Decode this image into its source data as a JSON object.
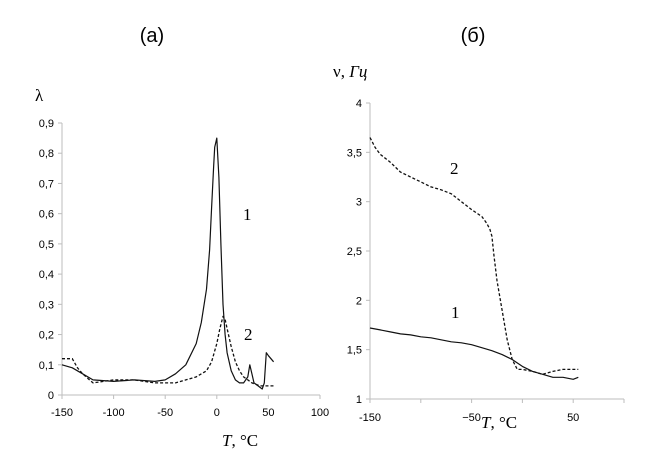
{
  "chart_data": [
    {
      "type": "line",
      "panel_label": "(а)",
      "ylabel": "λ",
      "xlabel_var": "T",
      "xlabel_unit": ", °C",
      "xlim": [
        -150,
        100
      ],
      "ylim": [
        0,
        0.9
      ],
      "x_ticks": [
        -150,
        -100,
        -50,
        0,
        50,
        100
      ],
      "y_ticks": [
        0,
        0.1,
        0.2,
        0.3,
        0.4,
        0.5,
        0.6,
        0.7,
        0.8,
        0.9
      ],
      "y_tick_labels": [
        "0",
        "0,1",
        "0,2",
        "0,3",
        "0,4",
        "0,5",
        "0,6",
        "0,7",
        "0,8",
        "0,9"
      ],
      "x_tick_labels": [
        "-150",
        "-100",
        "-50",
        "0",
        "50",
        "100"
      ],
      "grid": false,
      "series": [
        {
          "name": "1",
          "style": "solid",
          "x": [
            -150,
            -140,
            -130,
            -120,
            -100,
            -80,
            -60,
            -50,
            -40,
            -30,
            -20,
            -15,
            -10,
            -7,
            -5,
            -3,
            -2,
            0,
            2,
            4,
            6,
            8,
            10,
            14,
            18,
            22,
            26,
            30,
            32,
            34,
            36,
            40,
            44,
            46,
            48,
            50,
            55
          ],
          "y": [
            0.1,
            0.09,
            0.07,
            0.05,
            0.045,
            0.05,
            0.045,
            0.05,
            0.07,
            0.1,
            0.17,
            0.24,
            0.35,
            0.48,
            0.62,
            0.76,
            0.82,
            0.85,
            0.72,
            0.5,
            0.3,
            0.2,
            0.14,
            0.08,
            0.05,
            0.04,
            0.04,
            0.06,
            0.1,
            0.07,
            0.04,
            0.03,
            0.02,
            0.04,
            0.14,
            0.13,
            0.11
          ]
        },
        {
          "name": "2",
          "style": "dashed",
          "x": [
            -150,
            -140,
            -135,
            -130,
            -120,
            -100,
            -80,
            -60,
            -40,
            -30,
            -20,
            -10,
            -5,
            0,
            3,
            6,
            8,
            10,
            14,
            18,
            22,
            26,
            30,
            34,
            38,
            42,
            46,
            50,
            55
          ],
          "y": [
            0.12,
            0.12,
            0.09,
            0.07,
            0.04,
            0.05,
            0.05,
            0.04,
            0.04,
            0.05,
            0.06,
            0.08,
            0.11,
            0.17,
            0.22,
            0.26,
            0.25,
            0.22,
            0.16,
            0.11,
            0.08,
            0.06,
            0.05,
            0.04,
            0.035,
            0.03,
            0.03,
            0.03,
            0.03
          ]
        }
      ]
    },
    {
      "type": "line",
      "panel_label": "(б)",
      "ylabel_var": "ν",
      "ylabel_unit": "Гц",
      "xlabel_var": "T",
      "xlabel_unit": ", °C",
      "xlim": [
        -150,
        100
      ],
      "ylim": [
        1,
        4
      ],
      "x_ticks": [
        -150,
        -50,
        50
      ],
      "x_minor_ticks": [
        -150,
        -100,
        -50,
        0,
        50,
        100
      ],
      "y_ticks": [
        1,
        1.5,
        2,
        2.5,
        3,
        3.5,
        4
      ],
      "y_tick_labels": [
        "1",
        "1,5",
        "2",
        "2,5",
        "3",
        "3,5",
        "4"
      ],
      "x_tick_labels": [
        "-150",
        "−50",
        "50"
      ],
      "grid": false,
      "series": [
        {
          "name": "1",
          "style": "solid",
          "x": [
            -150,
            -140,
            -130,
            -120,
            -110,
            -100,
            -90,
            -80,
            -70,
            -60,
            -50,
            -40,
            -30,
            -20,
            -10,
            0,
            10,
            20,
            30,
            40,
            50,
            55
          ],
          "y": [
            1.72,
            1.7,
            1.68,
            1.66,
            1.65,
            1.63,
            1.62,
            1.6,
            1.58,
            1.57,
            1.55,
            1.52,
            1.49,
            1.45,
            1.4,
            1.33,
            1.28,
            1.25,
            1.22,
            1.22,
            1.2,
            1.22
          ]
        },
        {
          "name": "2",
          "style": "dashed",
          "x": [
            -150,
            -145,
            -140,
            -130,
            -120,
            -110,
            -100,
            -90,
            -80,
            -70,
            -60,
            -50,
            -40,
            -35,
            -32,
            -30,
            -28,
            -25,
            -20,
            -15,
            -10,
            -5,
            0,
            10,
            20,
            30,
            40,
            50,
            55
          ],
          "y": [
            3.65,
            3.55,
            3.48,
            3.4,
            3.3,
            3.25,
            3.2,
            3.15,
            3.12,
            3.08,
            3.0,
            2.92,
            2.85,
            2.78,
            2.72,
            2.65,
            2.45,
            2.2,
            1.9,
            1.6,
            1.4,
            1.3,
            1.3,
            1.28,
            1.25,
            1.28,
            1.3,
            1.3,
            1.3
          ]
        }
      ]
    }
  ]
}
